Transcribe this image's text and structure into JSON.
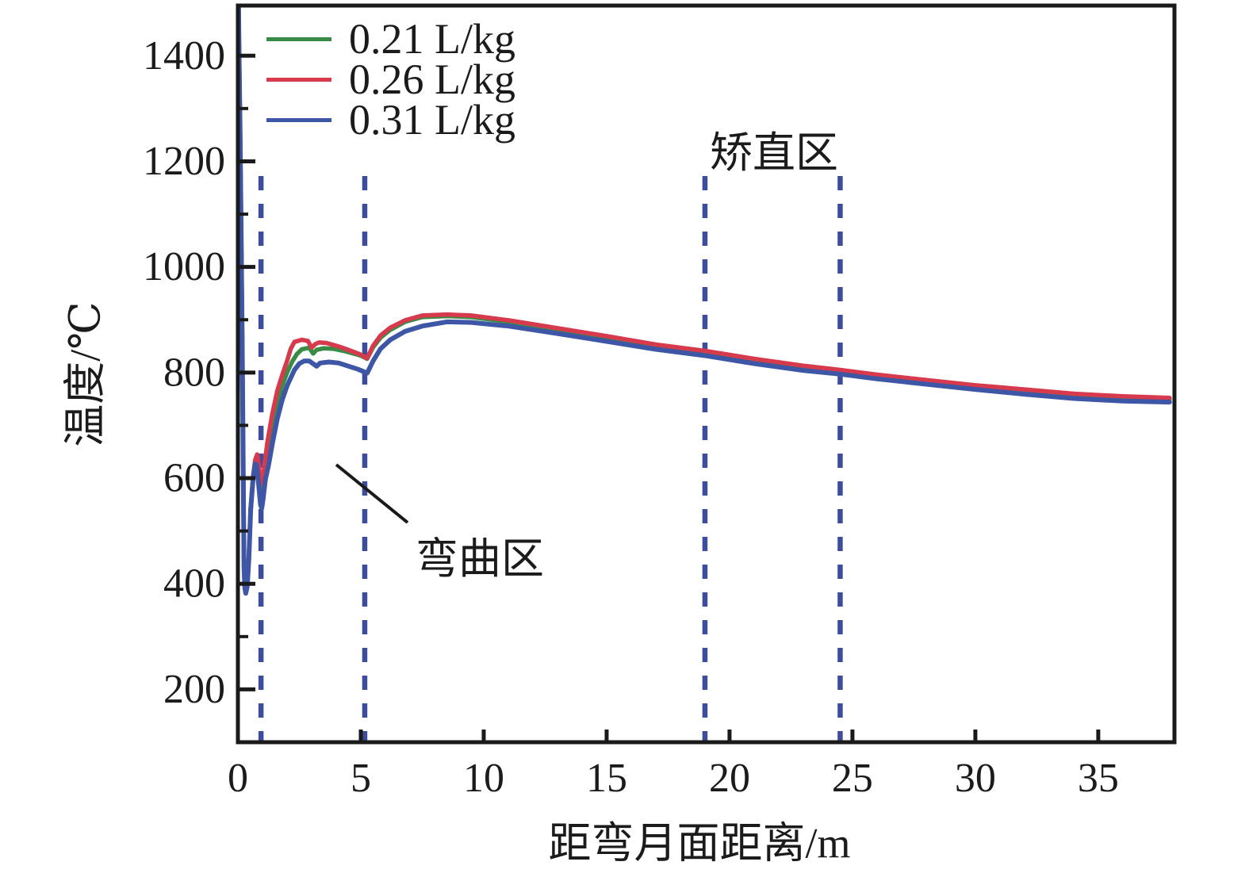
{
  "chart_data": {
    "type": "line",
    "title": "",
    "xlabel": "距弯月面距离/m",
    "ylabel": "温度/℃",
    "xlim": [
      0,
      38.1
    ],
    "ylim": [
      100,
      1495
    ],
    "x_ticks": [
      0,
      5,
      10,
      15,
      20,
      25,
      30,
      35
    ],
    "y_ticks": [
      200,
      400,
      600,
      800,
      1000,
      1200,
      1400
    ],
    "y_minor_ticks": [
      300,
      500,
      700,
      900,
      1100,
      1300
    ],
    "grid": false,
    "legend_position": "top-left",
    "axis_color": "#1a1a1a",
    "text_color": "#1b1b1b",
    "series": [
      {
        "name": "0.21 L/kg",
        "color": "#3a8b45",
        "points": [
          [
            0.02,
            1524
          ],
          [
            0.05,
            1404
          ],
          [
            0.09,
            1254
          ],
          [
            0.13,
            1084
          ],
          [
            0.17,
            884
          ],
          [
            0.21,
            664
          ],
          [
            0.25,
            434
          ],
          [
            0.28,
            396
          ],
          [
            0.32,
            386
          ],
          [
            0.38,
            399
          ],
          [
            0.45,
            454
          ],
          [
            0.52,
            544
          ],
          [
            0.62,
            602
          ],
          [
            0.7,
            630
          ],
          [
            0.78,
            636
          ],
          [
            0.86,
            608
          ],
          [
            0.94,
            572
          ],
          [
            1.0,
            575
          ],
          [
            1.08,
            605
          ],
          [
            1.2,
            645
          ],
          [
            1.4,
            700
          ],
          [
            1.6,
            742
          ],
          [
            1.8,
            775
          ],
          [
            2.0,
            800
          ],
          [
            2.2,
            820
          ],
          [
            2.4,
            835
          ],
          [
            2.6,
            844
          ],
          [
            2.9,
            847
          ],
          [
            3.06,
            836
          ],
          [
            3.2,
            843
          ],
          [
            3.5,
            846
          ],
          [
            3.9,
            845
          ],
          [
            4.3,
            841
          ],
          [
            4.7,
            836
          ],
          [
            5.0,
            832
          ],
          [
            5.26,
            826
          ],
          [
            5.5,
            848
          ],
          [
            5.8,
            866
          ],
          [
            6.2,
            881
          ],
          [
            6.8,
            896
          ],
          [
            7.5,
            905
          ],
          [
            8.5,
            907
          ],
          [
            9.5,
            905
          ],
          [
            11.0,
            896
          ],
          [
            13.0,
            881
          ],
          [
            15.0,
            866
          ],
          [
            17.0,
            850
          ],
          [
            19.0,
            838
          ],
          [
            21.0,
            823
          ],
          [
            23.0,
            810
          ],
          [
            24.5,
            802
          ],
          [
            26.0,
            793
          ],
          [
            28.0,
            783
          ],
          [
            30.0,
            773
          ],
          [
            32.0,
            765
          ],
          [
            34.0,
            757
          ],
          [
            36.0,
            752
          ],
          [
            37.9,
            749
          ]
        ]
      },
      {
        "name": "0.26 L/kg",
        "color": "#d73a4c",
        "points": [
          [
            0.02,
            1522
          ],
          [
            0.05,
            1402
          ],
          [
            0.09,
            1252
          ],
          [
            0.13,
            1082
          ],
          [
            0.17,
            882
          ],
          [
            0.21,
            662
          ],
          [
            0.25,
            432
          ],
          [
            0.28,
            394
          ],
          [
            0.32,
            384
          ],
          [
            0.38,
            397
          ],
          [
            0.45,
            452
          ],
          [
            0.52,
            542
          ],
          [
            0.62,
            604
          ],
          [
            0.7,
            634
          ],
          [
            0.78,
            645
          ],
          [
            0.86,
            620
          ],
          [
            0.94,
            590
          ],
          [
            1.0,
            592
          ],
          [
            1.08,
            625
          ],
          [
            1.2,
            668
          ],
          [
            1.4,
            722
          ],
          [
            1.6,
            765
          ],
          [
            1.8,
            795
          ],
          [
            2.0,
            822
          ],
          [
            2.15,
            845
          ],
          [
            2.3,
            858
          ],
          [
            2.6,
            862
          ],
          [
            2.85,
            860
          ],
          [
            3.0,
            847
          ],
          [
            3.15,
            854
          ],
          [
            3.3,
            857
          ],
          [
            3.6,
            856
          ],
          [
            3.9,
            852
          ],
          [
            4.2,
            848
          ],
          [
            4.6,
            841
          ],
          [
            5.0,
            834
          ],
          [
            5.26,
            827
          ],
          [
            5.5,
            851
          ],
          [
            5.8,
            870
          ],
          [
            6.2,
            885
          ],
          [
            6.8,
            899
          ],
          [
            7.5,
            908
          ],
          [
            8.5,
            910
          ],
          [
            9.5,
            908
          ],
          [
            11.0,
            899
          ],
          [
            13.0,
            884
          ],
          [
            15.0,
            869
          ],
          [
            17.0,
            853
          ],
          [
            19.0,
            841
          ],
          [
            21.0,
            826
          ],
          [
            23.0,
            813
          ],
          [
            24.5,
            805
          ],
          [
            26.0,
            796
          ],
          [
            28.0,
            786
          ],
          [
            30.0,
            776
          ],
          [
            32.0,
            768
          ],
          [
            34.0,
            760
          ],
          [
            36.0,
            755
          ],
          [
            37.9,
            752
          ]
        ]
      },
      {
        "name": "0.31 L/kg",
        "color": "#3d56a6",
        "points": [
          [
            0.02,
            1520
          ],
          [
            0.05,
            1400
          ],
          [
            0.09,
            1250
          ],
          [
            0.13,
            1080
          ],
          [
            0.17,
            880
          ],
          [
            0.21,
            660
          ],
          [
            0.25,
            430
          ],
          [
            0.28,
            392
          ],
          [
            0.32,
            382
          ],
          [
            0.38,
            395
          ],
          [
            0.45,
            450
          ],
          [
            0.52,
            540
          ],
          [
            0.62,
            600
          ],
          [
            0.7,
            627
          ],
          [
            0.76,
            625
          ],
          [
            0.84,
            590
          ],
          [
            0.92,
            550
          ],
          [
            0.97,
            543
          ],
          [
            1.03,
            562
          ],
          [
            1.12,
            598
          ],
          [
            1.25,
            625
          ],
          [
            1.4,
            665
          ],
          [
            1.6,
            712
          ],
          [
            1.8,
            748
          ],
          [
            2.0,
            775
          ],
          [
            2.3,
            805
          ],
          [
            2.5,
            817
          ],
          [
            2.7,
            822
          ],
          [
            2.9,
            822
          ],
          [
            3.2,
            812
          ],
          [
            3.35,
            818
          ],
          [
            3.7,
            820
          ],
          [
            4.1,
            818
          ],
          [
            4.5,
            812
          ],
          [
            4.9,
            806
          ],
          [
            5.26,
            799
          ],
          [
            5.5,
            822
          ],
          [
            5.8,
            845
          ],
          [
            6.2,
            862
          ],
          [
            6.8,
            878
          ],
          [
            7.5,
            888
          ],
          [
            8.5,
            896
          ],
          [
            9.5,
            895
          ],
          [
            11.0,
            888
          ],
          [
            13.0,
            874
          ],
          [
            15.0,
            859
          ],
          [
            17.0,
            844
          ],
          [
            19.0,
            832
          ],
          [
            21.0,
            817
          ],
          [
            23.0,
            804
          ],
          [
            24.5,
            797
          ],
          [
            26.0,
            788
          ],
          [
            28.0,
            778
          ],
          [
            30.0,
            768
          ],
          [
            32.0,
            759
          ],
          [
            34.0,
            751
          ],
          [
            36.0,
            746
          ],
          [
            37.9,
            744
          ]
        ]
      }
    ],
    "region_lines": {
      "color": "#3e4c9c",
      "x_positions": [
        0.94,
        5.16,
        19.0,
        24.5
      ]
    },
    "annotations": {
      "straightening": {
        "text": "矫直区"
      },
      "bending": {
        "text": "弯曲区"
      }
    }
  }
}
